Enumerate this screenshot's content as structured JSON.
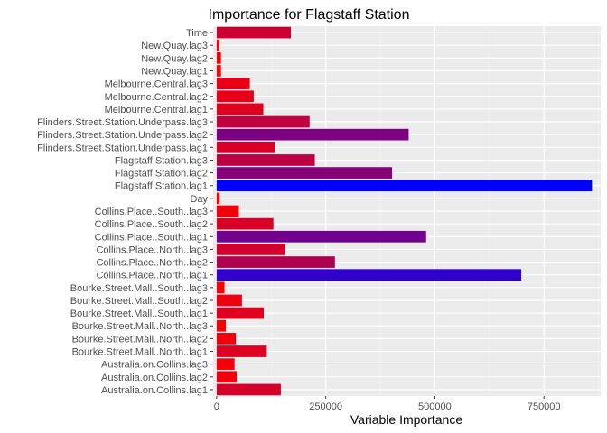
{
  "chart_data": {
    "type": "bar",
    "orientation": "horizontal",
    "title": "Importance for Flagstaff Station",
    "xlabel": "Variable Importance",
    "ylabel": "",
    "xlim": [
      -8000,
      880000
    ],
    "x_ticks": [
      0,
      250000,
      500000,
      750000
    ],
    "x_tick_labels": [
      "0",
      "250000",
      "500000",
      "750000"
    ],
    "grid": true,
    "legend": "none",
    "color_scale": {
      "low": "#ff0000",
      "high": "#0000ff"
    },
    "categories": [
      "Time",
      "New.Quay.lag3",
      "New.Quay.lag2",
      "New.Quay.lag1",
      "Melbourne.Central.lag3",
      "Melbourne.Central.lag2",
      "Melbourne.Central.lag1",
      "Flinders.Street.Station.Underpass.lag3",
      "Flinders.Street.Station.Underpass.lag2",
      "Flinders.Street.Station.Underpass.lag1",
      "Flagstaff.Station.lag3",
      "Flagstaff.Station.lag2",
      "Flagstaff.Station.lag1",
      "Day",
      "Collins.Place..South..lag3",
      "Collins.Place..South..lag2",
      "Collins.Place..South..lag1",
      "Collins.Place..North..lag3",
      "Collins.Place..North..lag2",
      "Collins.Place..North..lag1",
      "Bourke.Street.Mall..South..lag3",
      "Bourke.Street.Mall..South..lag2",
      "Bourke.Street.Mall..South..lag1",
      "Bourke.Street.Mall..North..lag3",
      "Bourke.Street.Mall..North..lag2",
      "Bourke.Street.Mall..North..lag1",
      "Australia.on.Collins.lag3",
      "Australia.on.Collins.lag2",
      "Australia.on.Collins.lag1"
    ],
    "values": [
      170000,
      6000,
      10000,
      10000,
      76000,
      85000,
      107000,
      213000,
      440000,
      133000,
      225000,
      402000,
      860000,
      7000,
      51000,
      130000,
      480000,
      157000,
      271000,
      698000,
      18000,
      58000,
      108000,
      21000,
      44000,
      115000,
      41000,
      46000,
      147000
    ]
  }
}
